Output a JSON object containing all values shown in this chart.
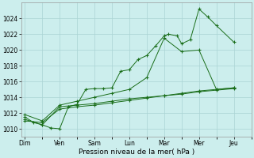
{
  "xlabel": "Pression niveau de la mer( hPa )",
  "background_color": "#cceeed",
  "grid_color": "#aad4d4",
  "line_color": "#1a6e1a",
  "x_labels": [
    "Dim",
    "Ven",
    "Sam",
    "Lun",
    "Mar",
    "Mer",
    "Jeu"
  ],
  "ylim": [
    1009,
    1026
  ],
  "yticks": [
    1010,
    1012,
    1014,
    1016,
    1018,
    1020,
    1022,
    1024
  ],
  "line1_x": [
    0,
    0.5,
    1,
    1.5,
    2,
    2.5,
    3,
    3.5,
    4,
    4.5,
    5,
    5.5,
    6,
    6.5,
    7,
    7.5,
    8,
    8.25,
    8.75,
    9,
    9.5,
    10,
    10.5,
    11,
    12
  ],
  "line1_y": [
    1011.5,
    1010.8,
    1010.5,
    1010.1,
    1010.0,
    1012.8,
    1013.1,
    1015.0,
    1015.1,
    1015.1,
    1015.2,
    1017.3,
    1017.5,
    1018.8,
    1019.3,
    1020.5,
    1021.8,
    1022.0,
    1021.8,
    1020.8,
    1021.3,
    1025.2,
    1024.2,
    1023.1,
    1021.0
  ],
  "line2_x": [
    0,
    1,
    2,
    3,
    4,
    5,
    6,
    7,
    8,
    9,
    10,
    11,
    12
  ],
  "line2_y": [
    1011.2,
    1010.5,
    1012.8,
    1013.0,
    1013.2,
    1013.5,
    1013.8,
    1014.0,
    1014.2,
    1014.5,
    1014.8,
    1015.0,
    1015.2
  ],
  "line3_x": [
    0,
    1,
    2,
    3,
    4,
    5,
    6,
    7,
    8,
    9,
    10,
    11,
    12
  ],
  "line3_y": [
    1011.0,
    1010.8,
    1012.5,
    1012.8,
    1013.0,
    1013.3,
    1013.6,
    1013.9,
    1014.2,
    1014.4,
    1014.7,
    1014.9,
    1015.1
  ],
  "line4_x": [
    0,
    1,
    2,
    3,
    4,
    5,
    6,
    7,
    8,
    9,
    10,
    11,
    12
  ],
  "line4_y": [
    1011.8,
    1011.0,
    1013.0,
    1013.5,
    1014.0,
    1014.5,
    1015.0,
    1016.5,
    1021.5,
    1019.8,
    1020.0,
    1015.0,
    1015.2
  ]
}
